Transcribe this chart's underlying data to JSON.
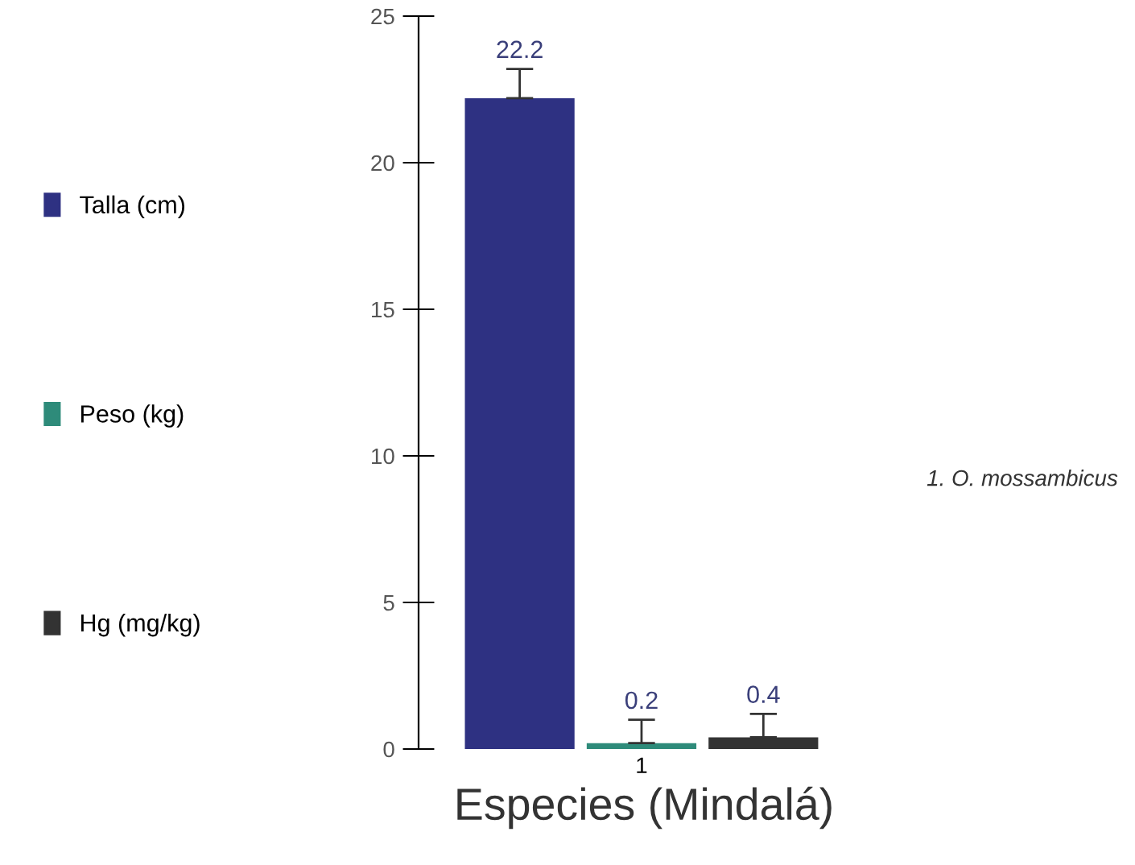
{
  "chart_data": {
    "type": "bar",
    "stacked": true,
    "xlabel": "Especies (Mindalá)",
    "categories": [
      null,
      "1",
      null
    ],
    "series": [
      {
        "name": "Talla (cm)",
        "color": "#2e3182",
        "values": [
          22.2,
          null,
          null
        ],
        "errors": [
          1.0,
          null,
          null
        ]
      },
      {
        "name": "Peso (kg)",
        "color": "#2e8b7a",
        "values": [
          null,
          0.2,
          null
        ],
        "errors": [
          null,
          0.8,
          null
        ]
      },
      {
        "name": "Hg (mg/kg)",
        "color": "#333333",
        "values": [
          null,
          null,
          0.4
        ],
        "errors": [
          null,
          null,
          0.8
        ]
      }
    ],
    "ylim": [
      0,
      25
    ],
    "yticks": [
      0,
      5,
      10,
      15,
      20,
      25
    ],
    "data_labels": true,
    "legend": "left",
    "grid": false,
    "annotations": [
      "1. O. mossambicus"
    ]
  }
}
